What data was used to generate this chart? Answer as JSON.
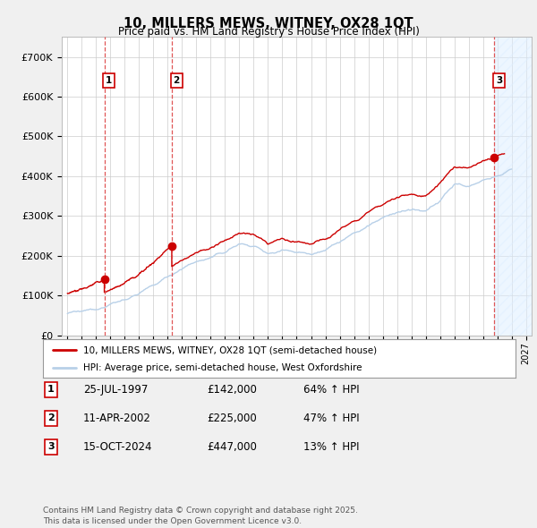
{
  "title": "10, MILLERS MEWS, WITNEY, OX28 1QT",
  "subtitle": "Price paid vs. HM Land Registry's House Price Index (HPI)",
  "ylim": [
    0,
    750000
  ],
  "yticks": [
    0,
    100000,
    200000,
    300000,
    400000,
    500000,
    600000,
    700000
  ],
  "ytick_labels": [
    "£0",
    "£100K",
    "£200K",
    "£300K",
    "£400K",
    "£500K",
    "£600K",
    "£700K"
  ],
  "xlim_start": 1994.6,
  "xlim_end": 2027.4,
  "hpi_color": "#b8d0e8",
  "price_color": "#cc0000",
  "sale_marker_color": "#cc0000",
  "background_color": "#f0f0f0",
  "plot_bg_color": "#ffffff",
  "grid_color": "#cccccc",
  "transaction_line_color": "#dd4444",
  "sale1_x": 1997.57,
  "sale1_y": 142000,
  "sale1_label": "1",
  "sale2_x": 2002.28,
  "sale2_y": 225000,
  "sale2_label": "2",
  "sale3_x": 2024.79,
  "sale3_y": 447000,
  "sale3_label": "3",
  "legend_entry1": "10, MILLERS MEWS, WITNEY, OX28 1QT (semi-detached house)",
  "legend_entry2": "HPI: Average price, semi-detached house, West Oxfordshire",
  "table_data": [
    {
      "num": "1",
      "date": "25-JUL-1997",
      "price": "£142,000",
      "hpi": "64% ↑ HPI"
    },
    {
      "num": "2",
      "date": "11-APR-2002",
      "price": "£225,000",
      "hpi": "47% ↑ HPI"
    },
    {
      "num": "3",
      "date": "15-OCT-2024",
      "price": "£447,000",
      "hpi": "13% ↑ HPI"
    }
  ],
  "footer": "Contains HM Land Registry data © Crown copyright and database right 2025.\nThis data is licensed under the Open Government Licence v3.0.",
  "hatch_region_start": 2024.79,
  "hatch_region_end": 2027.4
}
